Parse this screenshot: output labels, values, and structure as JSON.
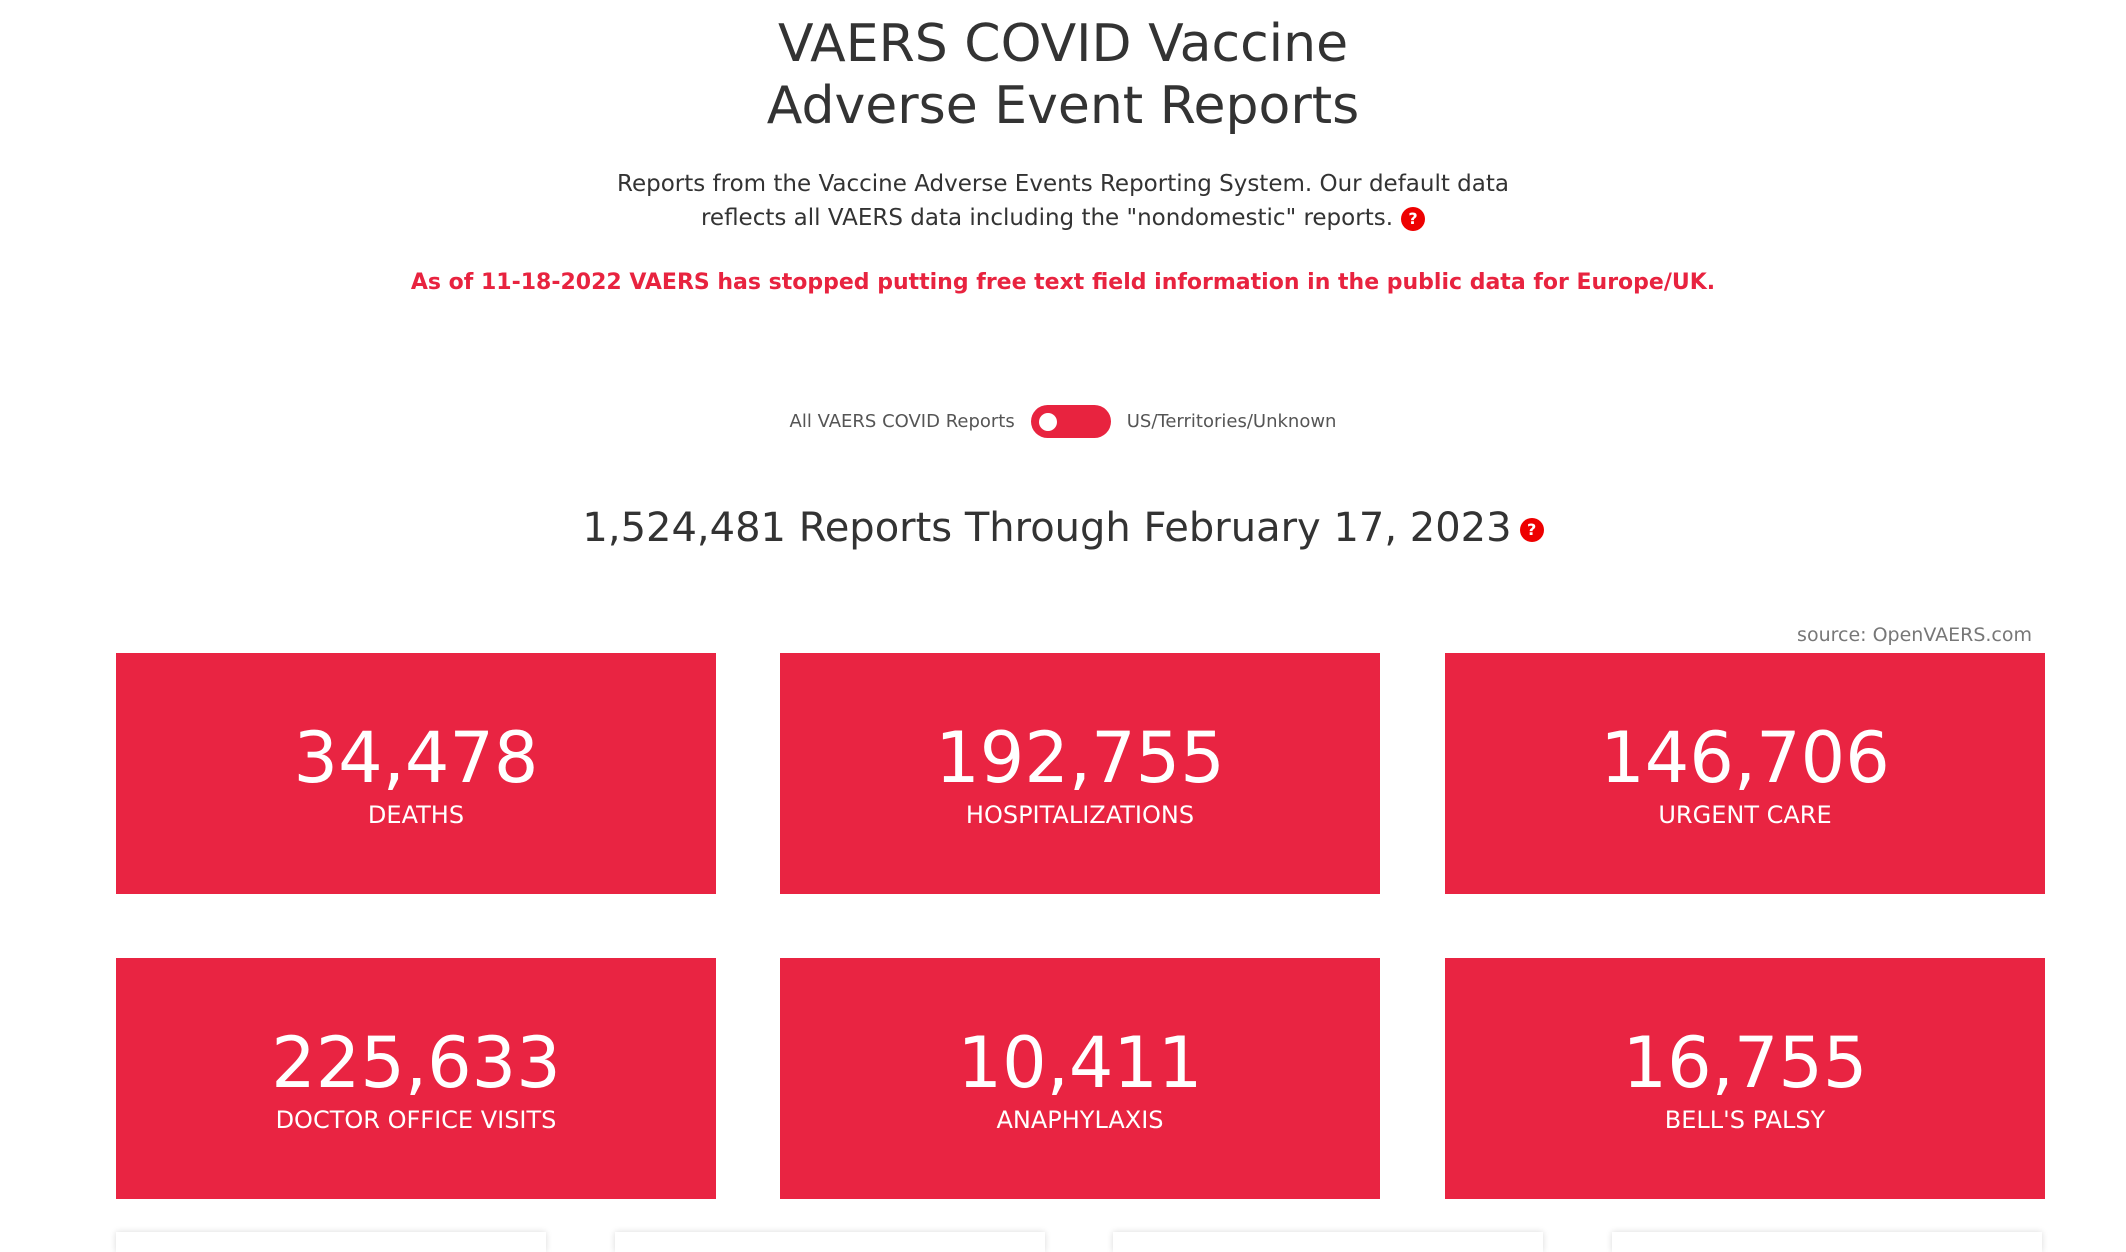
{
  "header": {
    "title_lines": [
      "VAERS COVID Vaccine",
      "Adverse Event Reports"
    ],
    "description_lines": [
      "Reports from the Vaccine Adverse Events Reporting System. Our default data",
      "reflects all VAERS data including the \"nondomestic\" reports."
    ],
    "notice": "As of 11-18-2022 VAERS has stopped putting free text field information in the public data for Europe/UK.",
    "help_icon": "?"
  },
  "toggle": {
    "left_label": "All VAERS COVID Reports",
    "right_label": "US/Territories/Unknown"
  },
  "summary": {
    "heading": "1,524,481 Reports Through February 17, 2023",
    "source": "source: OpenVAERS.com"
  },
  "cards": [
    {
      "value": "34,478",
      "label": "DEATHS"
    },
    {
      "value": "192,755",
      "label": "HOSPITALIZATIONS"
    },
    {
      "value": "146,706",
      "label": "URGENT CARE"
    },
    {
      "value": "225,633",
      "label": "DOCTOR OFFICE VISITS"
    },
    {
      "value": "10,411",
      "label": "ANAPHYLAXIS"
    },
    {
      "value": "16,755",
      "label": "BELL'S PALSY"
    }
  ]
}
